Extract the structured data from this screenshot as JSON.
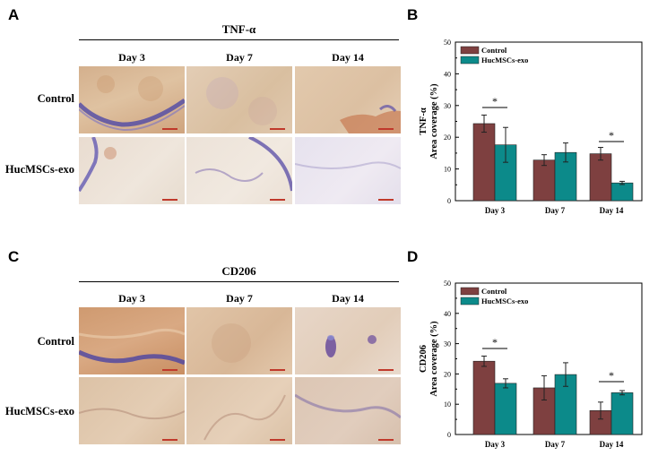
{
  "panels": {
    "A": "A",
    "B": "B",
    "C": "C",
    "D": "D"
  },
  "histology": [
    {
      "stain": "TNF-α",
      "days": [
        "Day 3",
        "Day 7",
        "Day 14"
      ],
      "rows": [
        "Control",
        "HucMSCs-exo"
      ]
    },
    {
      "stain": "CD206",
      "days": [
        "Day 3",
        "Day 7",
        "Day 14"
      ],
      "rows": [
        "Control",
        "HucMSCs-exo"
      ]
    }
  ],
  "chart_data": [
    {
      "type": "bar",
      "ylabel_top": "TNF-α",
      "ylabel": "Area coverage (%)",
      "ylim": [
        0,
        50
      ],
      "yticks": [
        0,
        10,
        20,
        30,
        40,
        50
      ],
      "categories": [
        "Day 3",
        "Day 7",
        "Day 14"
      ],
      "series": [
        {
          "name": "Control",
          "color": "#7e4040",
          "values": [
            24.3,
            12.8,
            14.8
          ],
          "errors": [
            2.7,
            1.7,
            2.0
          ]
        },
        {
          "name": "HucMSCs-exo",
          "color": "#0c8a8a",
          "values": [
            17.6,
            15.2,
            5.6
          ],
          "errors": [
            5.5,
            3.0,
            0.5
          ]
        }
      ],
      "significance": [
        {
          "category": "Day 3",
          "label": "*"
        },
        {
          "category": "Day 14",
          "label": "*"
        }
      ],
      "legend": "top-left"
    },
    {
      "type": "bar",
      "ylabel_top": "CD206",
      "ylabel": "Area coverage (%)",
      "ylim": [
        0,
        50
      ],
      "yticks": [
        0,
        10,
        20,
        30,
        40,
        50
      ],
      "categories": [
        "Day 3",
        "Day 7",
        "Day 14"
      ],
      "series": [
        {
          "name": "Control",
          "color": "#7e4040",
          "values": [
            24.2,
            15.4,
            7.9
          ],
          "errors": [
            1.7,
            4.0,
            2.8
          ]
        },
        {
          "name": "HucMSCs-exo",
          "color": "#0c8a8a",
          "values": [
            16.9,
            19.8,
            13.8
          ],
          "errors": [
            1.5,
            3.9,
            0.7
          ]
        }
      ],
      "significance": [
        {
          "category": "Day 3",
          "label": "*"
        },
        {
          "category": "Day 14",
          "label": "*"
        }
      ],
      "legend": "top-left"
    }
  ]
}
